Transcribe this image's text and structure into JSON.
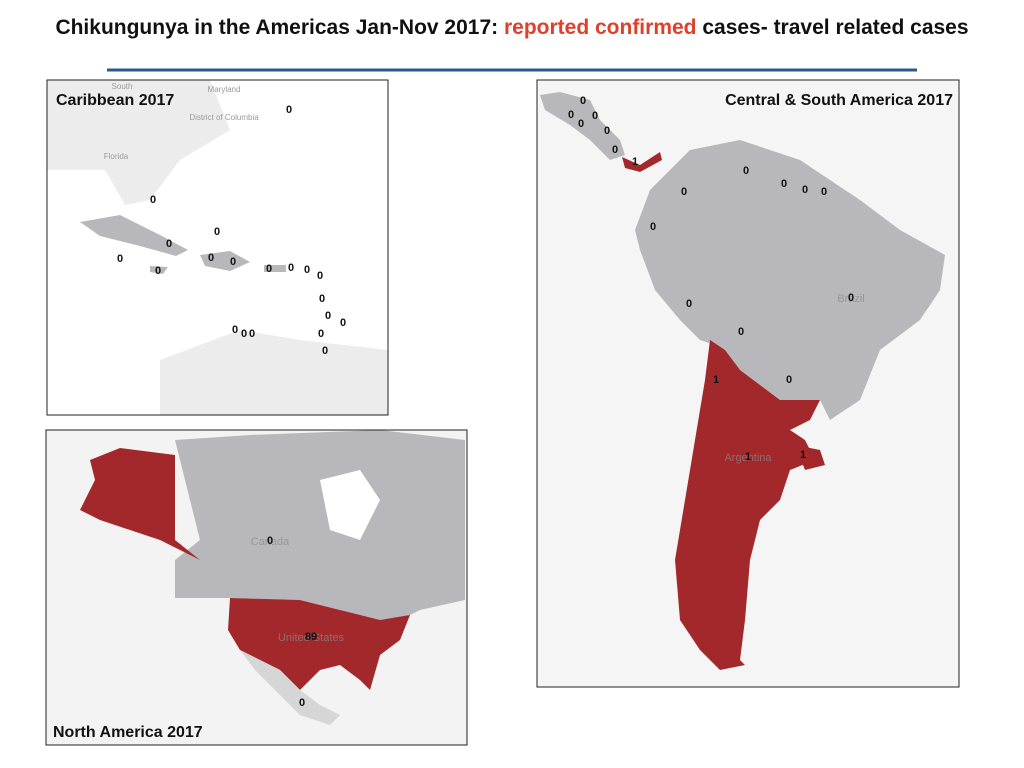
{
  "title": {
    "prefix": "Chikungunya in the Americas Jan-Nov 2017:",
    "highlight": "reported confirmed",
    "suffix": "cases- travel related cases"
  },
  "panels": [
    {
      "title": "Caribbean 2017",
      "place_labels": [
        "Maryland",
        "District of Columbia",
        "Florida",
        "South"
      ],
      "counts": [
        0,
        0,
        0,
        0,
        0,
        0,
        0,
        0,
        0,
        0,
        0,
        0,
        0,
        0,
        0,
        0,
        0,
        0,
        0,
        0
      ]
    },
    {
      "title": "Central & South America  2017",
      "place_labels": [
        "Brazil",
        "Argentina"
      ],
      "counts": [
        0,
        0,
        0,
        0,
        0,
        0,
        1,
        0,
        0,
        0,
        0,
        0,
        0,
        0,
        0,
        0,
        1,
        0,
        1,
        1
      ]
    },
    {
      "title": "North America  2017",
      "place_labels": [
        "Canada",
        "United States"
      ],
      "counts": [
        0,
        89,
        0
      ]
    }
  ]
}
